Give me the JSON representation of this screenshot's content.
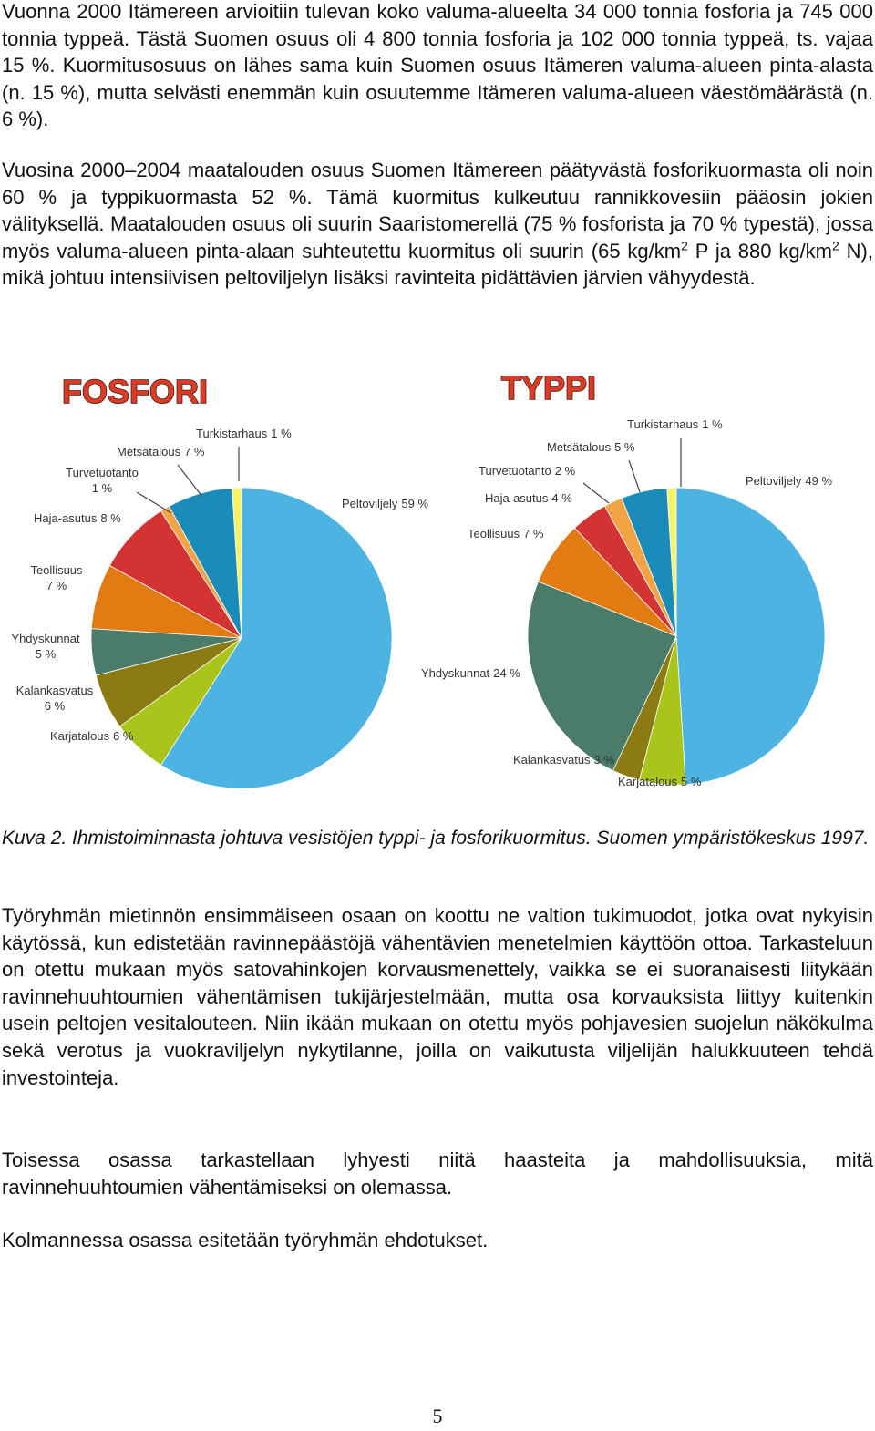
{
  "paragraphs_top": [
    [
      "Vuonna 2000 Itämereen arvioitiin tulevan koko valuma-alueelta 34 000 tonnia fosforia ja 745 000 tonnia typpeä. Tästä Suomen osuus oli 4 800 tonnia fosforia ja 102 000 tonnia typpeä, ts. vajaa 15 %. Kuormitusosuus on lähes sama kuin Suomen osuus Itämeren valuma-alueen pinta-alasta (n. 15 %), mutta selvästi enemmän kuin osuutemme Itämeren valuma-alueen väestömäärästä (n. 6 %)."
    ],
    [
      "Vuosina 2000–2004 maatalouden osuus Suomen Itämereen päätyvästä fosforikuormasta oli noin 60 % ja typpikuormasta 52 %. Tämä kuormitus kulkeutuu rannikkovesiin pääosin jokien välityksellä. Maatalouden osuus oli suurin Saaristomerellä (75 % fosforista ja 70 % typestä), jossa myös valuma-alueen pinta-alaan suhteutettu kuormitus oli suurin (65 kg/km",
      "2",
      " P ja 880 kg/km",
      "2",
      " N), mikä johtuu intensiivisen peltoviljelyn lisäksi ravinteita pidättävien järvien vähyydestä."
    ]
  ],
  "chart_data": [
    {
      "type": "pie",
      "title": "FOSFORI",
      "categories": [
        "Peltoviljely",
        "Karjatalous",
        "Kalankasvatus",
        "Yhdyskunnat",
        "Teollisuus",
        "Haja-asutus",
        "Turvetuotanto",
        "Metsätalous",
        "Turkistarhaus"
      ],
      "values": [
        59,
        6,
        6,
        5,
        7,
        8,
        1,
        7,
        1
      ],
      "value_labels": [
        "59 %",
        "6 %",
        "6 %",
        "5 %",
        "7 %",
        "8 %",
        "1 %",
        "7 %",
        "1 %"
      ],
      "colors": [
        "#4db3e2",
        "#a9c51b",
        "#8c7b12",
        "#4b7b69",
        "#e37b13",
        "#d33333",
        "#f2a444",
        "#1b8cba",
        "#f6f265"
      ]
    },
    {
      "type": "pie",
      "title": "TYPPI",
      "categories": [
        "Peltoviljely",
        "Karjatalous",
        "Kalankasvatus",
        "Yhdyskunnat",
        "Teollisuus",
        "Haja-asutus",
        "Turvetuotanto",
        "Metsätalous",
        "Turkistarhaus"
      ],
      "values": [
        49,
        5,
        3,
        24,
        7,
        4,
        2,
        5,
        1
      ],
      "value_labels": [
        "49 %",
        "5 %",
        "3 %",
        "24 %",
        "7 %",
        "4 %",
        "2 %",
        "5 %",
        "1 %"
      ],
      "colors": [
        "#4db3e2",
        "#a9c51b",
        "#8c7b12",
        "#4b7b69",
        "#e37b13",
        "#d33333",
        "#f2a444",
        "#1b8cba",
        "#f6f265"
      ]
    }
  ],
  "caption": "Kuva 2. Ihmistoiminnasta johtuva vesistöjen typpi- ja fosforikuormitus. Suomen ympäristökeskus 1997.",
  "paragraphs_bottom": [
    "Työryhmän mietinnön ensimmäiseen osaan on koottu ne valtion tukimuodot, jotka ovat nykyisin käytössä, kun edistetään ravinnepäästöjä vähentävien menetelmien käyttöön ottoa. Tarkasteluun on otettu mukaan myös satovahinkojen korvausmenettely, vaikka se ei suoranaisesti liitykään ravinnehuuhtoumien vähentämisen tukijärjestelmään, mutta osa korvauksista liittyy kuitenkin usein peltojen vesitalouteen. Niin ikään mukaan on otettu myös pohjavesien suojelun näkökulma sekä verotus ja vuokraviljelyn nykytilanne, joilla on vaikutusta viljelijän halukkuuteen tehdä investointeja.",
    "Toisessa osassa tarkastellaan lyhyesti niitä haasteita ja mahdollisuuksia, mitä ravinnehuuhtoumien vähentämiseksi on olemassa.",
    "Kolmannessa osassa esitetään työryhmän ehdotukset."
  ],
  "page_number": "5"
}
